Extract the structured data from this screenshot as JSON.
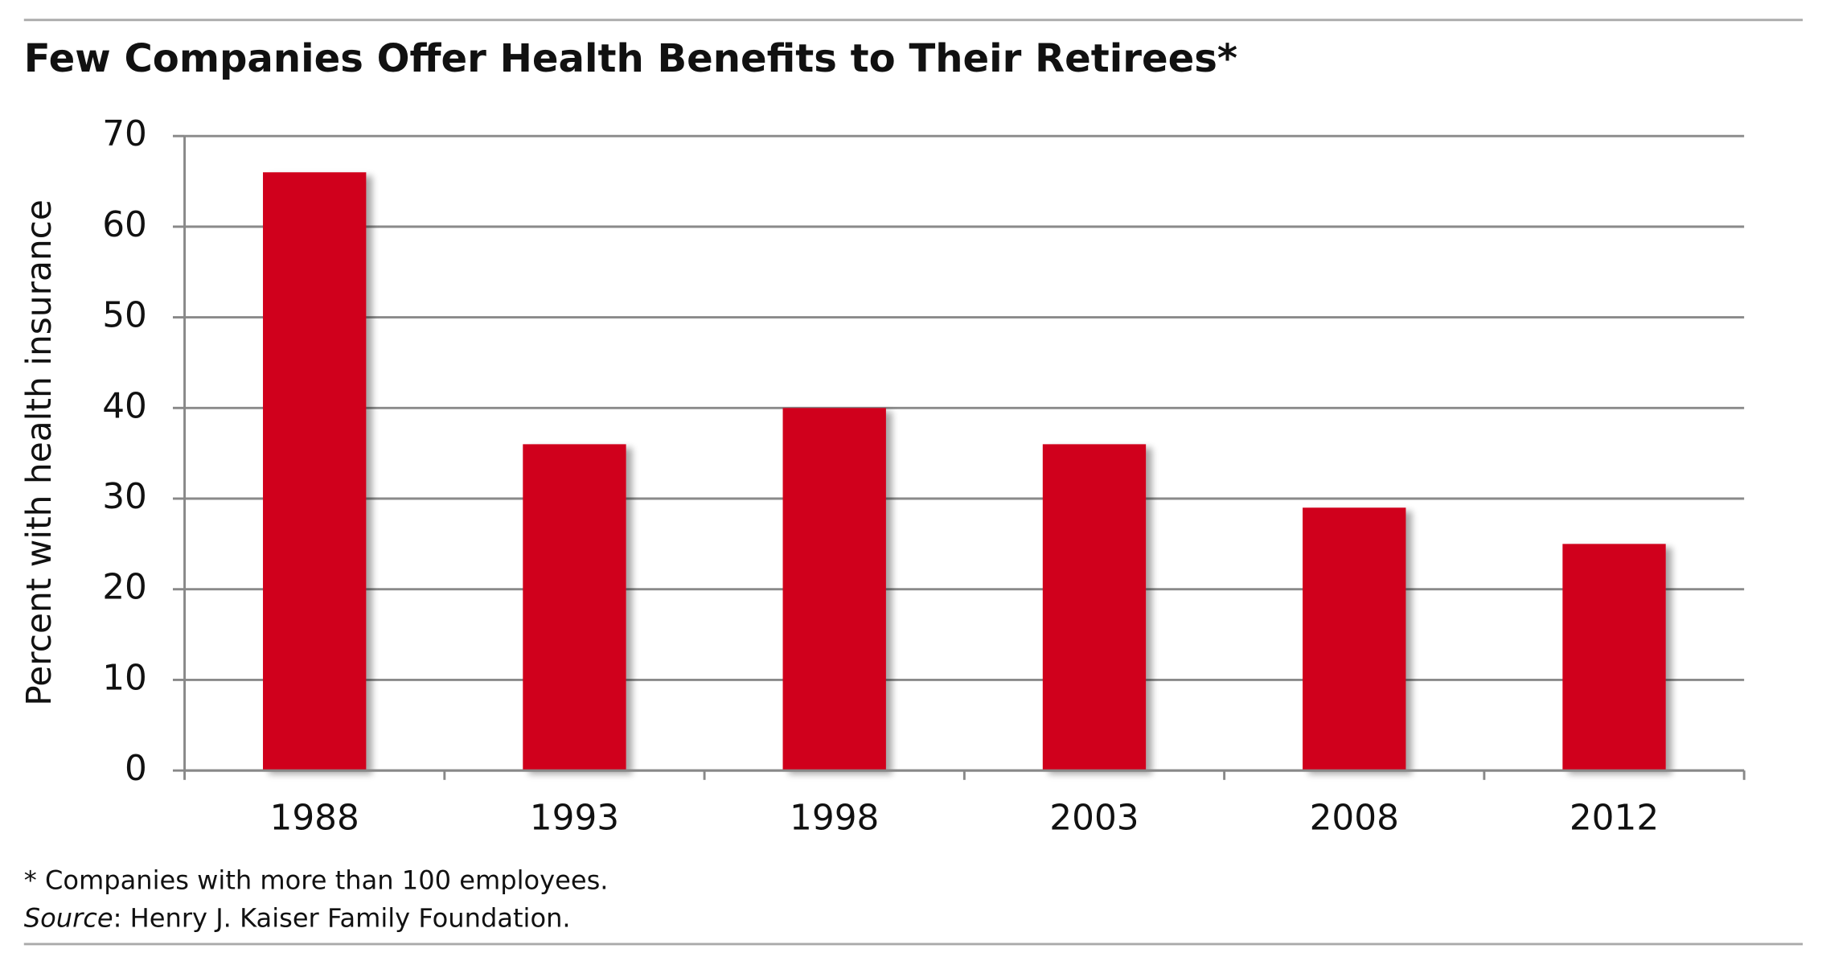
{
  "chart_data": {
    "type": "bar",
    "title": "Few Companies Offer Health Benefits to Their Retirees*",
    "y_label": "Percent with health insurance",
    "categories": [
      "1988",
      "1993",
      "1998",
      "2003",
      "2008",
      "2012"
    ],
    "values": [
      66,
      36,
      40,
      36,
      29,
      25
    ],
    "color": "#d0021b",
    "ylim": [
      0,
      70
    ],
    "yticks": [
      0,
      10,
      20,
      30,
      40,
      50,
      60,
      70
    ],
    "grid": true,
    "footnote": "* Companies with more than 100 employees.",
    "source_label": "Source",
    "source_text": ": Henry J. Kaiser Family Foundation."
  }
}
